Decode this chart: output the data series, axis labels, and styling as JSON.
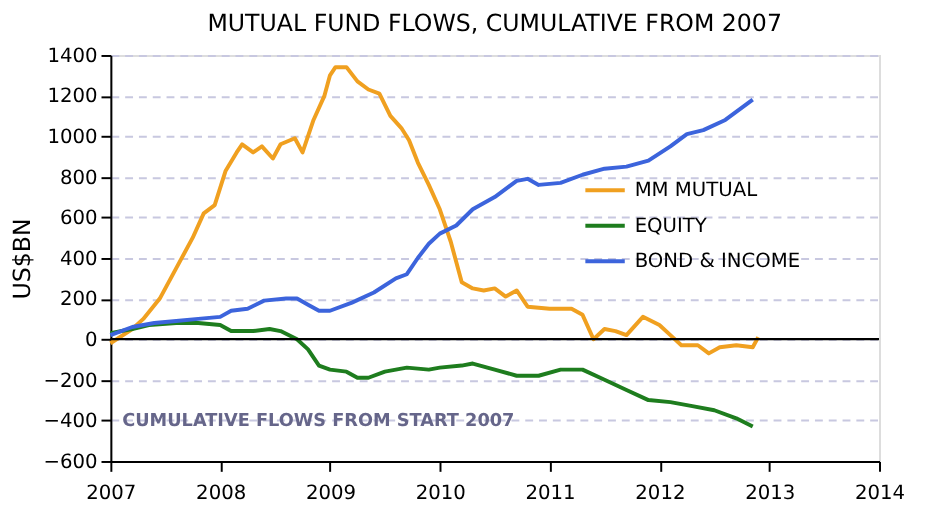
{
  "chart_data": {
    "type": "line",
    "title": "MUTUAL FUND FLOWS, CUMULATIVE FROM 2007",
    "ylabel": "US$BN",
    "xlim": [
      2007,
      2014
    ],
    "xticks": [
      2007,
      2008,
      2009,
      2010,
      2011,
      2012,
      2013,
      2014
    ],
    "ylim": [
      -600,
      1400
    ],
    "yticks": [
      -600,
      -400,
      -200,
      0,
      200,
      400,
      600,
      800,
      1000,
      1200,
      1400
    ],
    "grid": "y",
    "legend": "right",
    "line_style": "solid",
    "marker": "none",
    "annotations": [
      "CUMULATIVE FLOWS FROM START 2007"
    ],
    "ref_lines": [
      {
        "axis": "y",
        "value": 0,
        "label": null,
        "color": "#000000"
      }
    ],
    "series": [
      {
        "name": "MM MUTUAL",
        "color": "#f0a020",
        "x": [
          2007.0,
          2007.2,
          2007.3,
          2007.45,
          2007.6,
          2007.75,
          2007.85,
          2007.95,
          2008.05,
          2008.15,
          2008.2,
          2008.3,
          2008.38,
          2008.48,
          2008.55,
          2008.68,
          2008.75,
          2008.85,
          2008.95,
          2009.0,
          2009.05,
          2009.15,
          2009.25,
          2009.35,
          2009.45,
          2009.55,
          2009.65,
          2009.72,
          2009.8,
          2009.9,
          2010.0,
          2010.1,
          2010.2,
          2010.3,
          2010.4,
          2010.5,
          2010.6,
          2010.7,
          2010.8,
          2011.0,
          2011.2,
          2011.3,
          2011.4,
          2011.5,
          2011.6,
          2011.7,
          2011.85,
          2012.0,
          2012.1,
          2012.2,
          2012.35,
          2012.45,
          2012.55,
          2012.7,
          2012.85,
          2012.9
        ],
        "values": [
          -20,
          50,
          100,
          200,
          350,
          500,
          620,
          660,
          830,
          920,
          960,
          920,
          950,
          890,
          960,
          990,
          920,
          1080,
          1200,
          1300,
          1340,
          1340,
          1270,
          1230,
          1210,
          1100,
          1040,
          980,
          870,
          760,
          640,
          480,
          280,
          250,
          240,
          250,
          210,
          240,
          160,
          150,
          150,
          120,
          0,
          50,
          40,
          20,
          110,
          70,
          20,
          -30,
          -30,
          -70,
          -40,
          -30,
          -40,
          10
        ]
      },
      {
        "name": "EQUITY",
        "color": "#1e7d1e",
        "x": [
          2007.0,
          2007.2,
          2007.35,
          2007.6,
          2007.8,
          2008.0,
          2008.1,
          2008.3,
          2008.45,
          2008.55,
          2008.7,
          2008.8,
          2008.9,
          2009.0,
          2009.15,
          2009.25,
          2009.35,
          2009.5,
          2009.7,
          2009.9,
          2010.0,
          2010.2,
          2010.3,
          2010.5,
          2010.7,
          2010.9,
          2011.1,
          2011.3,
          2011.5,
          2011.7,
          2011.9,
          2012.1,
          2012.3,
          2012.5,
          2012.7,
          2012.85
        ],
        "values": [
          30,
          50,
          70,
          80,
          80,
          70,
          40,
          40,
          50,
          40,
          0,
          -50,
          -130,
          -150,
          -160,
          -190,
          -190,
          -160,
          -140,
          -150,
          -140,
          -130,
          -120,
          -150,
          -180,
          -180,
          -150,
          -150,
          -200,
          -250,
          -300,
          -310,
          -330,
          -350,
          -390,
          -430
        ]
      },
      {
        "name": "BOND & INCOME",
        "color": "#3c64dc",
        "x": [
          2007.0,
          2007.2,
          2007.4,
          2007.6,
          2007.8,
          2008.0,
          2008.1,
          2008.25,
          2008.4,
          2008.6,
          2008.7,
          2008.8,
          2008.9,
          2009.0,
          2009.2,
          2009.4,
          2009.6,
          2009.7,
          2009.8,
          2009.9,
          2010.0,
          2010.15,
          2010.3,
          2010.5,
          2010.7,
          2010.8,
          2010.9,
          2011.1,
          2011.3,
          2011.5,
          2011.7,
          2011.9,
          2012.1,
          2012.25,
          2012.4,
          2012.6,
          2012.85
        ],
        "values": [
          20,
          60,
          80,
          90,
          100,
          110,
          140,
          150,
          190,
          200,
          200,
          170,
          140,
          140,
          180,
          230,
          300,
          320,
          400,
          470,
          520,
          560,
          640,
          700,
          780,
          790,
          760,
          770,
          810,
          840,
          850,
          880,
          950,
          1010,
          1030,
          1080,
          1180
        ]
      }
    ]
  }
}
